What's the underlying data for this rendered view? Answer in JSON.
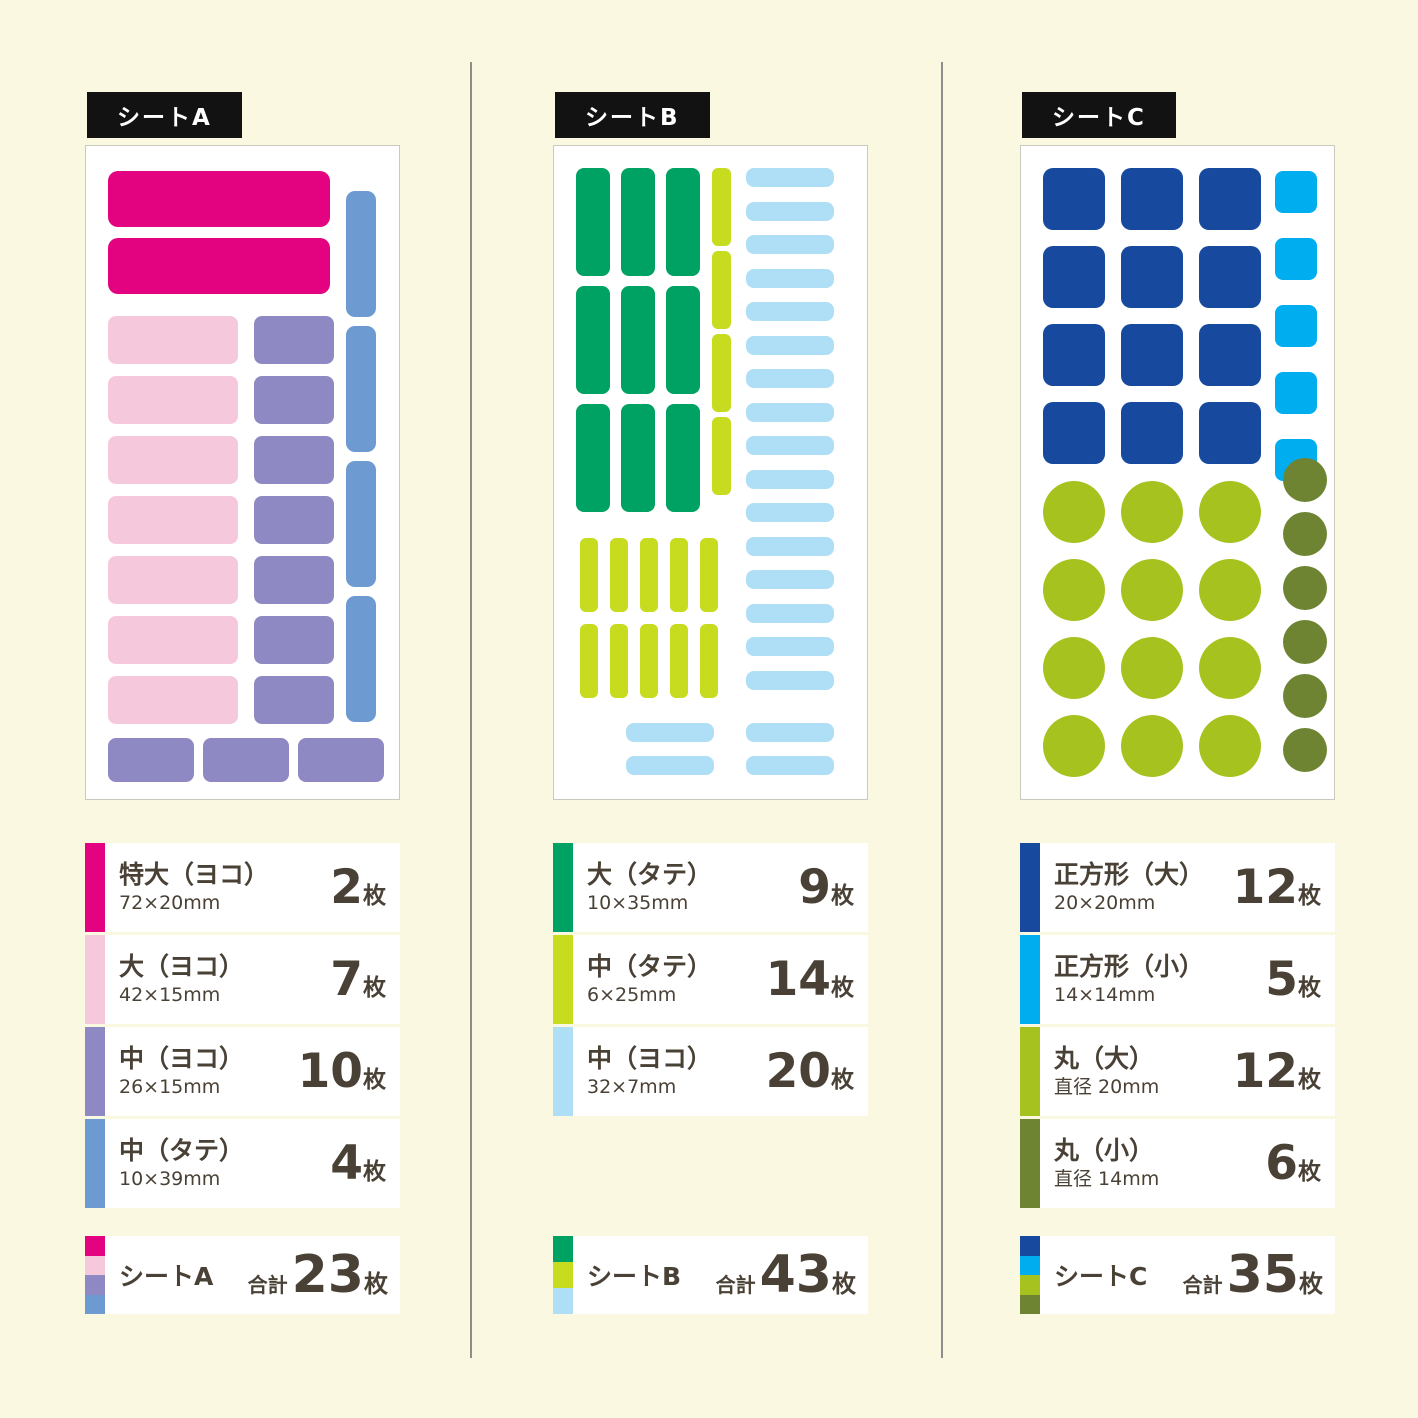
{
  "page": {
    "background": "#FBF8E2",
    "text_color": "#4A4136"
  },
  "palette": {
    "magenta": "#E3027F",
    "pink": "#F5C8DC",
    "purple": "#8E89C2",
    "blue": "#6D9AD1",
    "green": "#00A263",
    "yellowGreen": "#C7DB1F",
    "lightBlue": "#AEDFF6",
    "darkBlue": "#17499E",
    "cyan": "#00AEEF",
    "circleGreen": "#A6C21F",
    "olive": "#6F8433"
  },
  "sheets": [
    {
      "badge": "シートA",
      "legend": [
        {
          "name": "特大（ヨコ）",
          "size": "72×20mm",
          "count": "2",
          "unit": "枚",
          "color": "magenta"
        },
        {
          "name": "大（ヨコ）",
          "size": "42×15mm",
          "count": "7",
          "unit": "枚",
          "color": "pink"
        },
        {
          "name": "中（ヨコ）",
          "size": "26×15mm",
          "count": "10",
          "unit": "枚",
          "color": "purple"
        },
        {
          "name": "中（タテ）",
          "size": "10×39mm",
          "count": "4",
          "unit": "枚",
          "color": "blue"
        }
      ],
      "total": {
        "label": "シートA",
        "prefix": "合計",
        "count": "23",
        "unit": "枚",
        "colors": [
          "magenta",
          "pink",
          "purple",
          "blue"
        ]
      }
    },
    {
      "badge": "シートB",
      "legend": [
        {
          "name": "大（タテ）",
          "size": "10×35mm",
          "count": "9",
          "unit": "枚",
          "color": "green"
        },
        {
          "name": "中（タテ）",
          "size": "6×25mm",
          "count": "14",
          "unit": "枚",
          "color": "yellowGreen"
        },
        {
          "name": "中（ヨコ）",
          "size": "32×7mm",
          "count": "20",
          "unit": "枚",
          "color": "lightBlue"
        }
      ],
      "total": {
        "label": "シートB",
        "prefix": "合計",
        "count": "43",
        "unit": "枚",
        "colors": [
          "green",
          "yellowGreen",
          "lightBlue"
        ]
      }
    },
    {
      "badge": "シートC",
      "legend": [
        {
          "name": "正方形（大）",
          "size": "20×20mm",
          "count": "12",
          "unit": "枚",
          "color": "darkBlue"
        },
        {
          "name": "正方形（小）",
          "size": "14×14mm",
          "count": "5",
          "unit": "枚",
          "color": "cyan"
        },
        {
          "name": "丸（大）",
          "size": "直径 20mm",
          "count": "12",
          "unit": "枚",
          "color": "circleGreen"
        },
        {
          "name": "丸（小）",
          "size": "直径 14mm",
          "count": "6",
          "unit": "枚",
          "color": "olive"
        }
      ],
      "total": {
        "label": "シートC",
        "prefix": "合計",
        "count": "35",
        "unit": "枚",
        "colors": [
          "darkBlue",
          "cyan",
          "circleGreen",
          "olive"
        ]
      }
    }
  ]
}
